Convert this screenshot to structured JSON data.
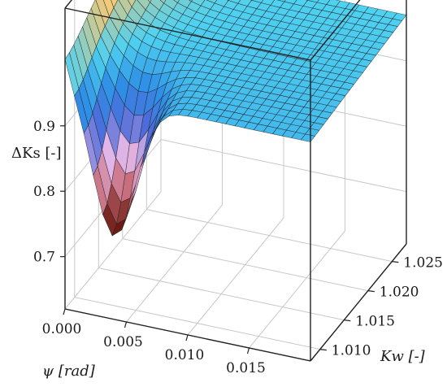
{
  "chart_data": {
    "type": "surface3d",
    "xlabel": "ψ [rad]",
    "ylabel": "Kw [-]",
    "zlabel": "ΔKs [-]",
    "x_ticks": [
      "0.000",
      "0.005",
      "0.010",
      "0.015"
    ],
    "y_ticks": [
      "1.010",
      "1.015",
      "1.020",
      "1.025"
    ],
    "z_ticks": [
      "0.7",
      "0.8",
      "0.9"
    ],
    "x_range": [
      0.0,
      0.02
    ],
    "y_range": [
      1.008,
      1.028
    ],
    "z_range": [
      0.62,
      1.08
    ],
    "grid": true,
    "colormap": [
      "#6b1b12",
      "#c66a78",
      "#e5b8e8",
      "#4d6bd9",
      "#2e8fe6",
      "#4fd1f0"
    ],
    "surface_shape": "Minimum ≈0.76 near ψ≈0.004, Kw≈1.009; maximum ≈1.08 at ψ=0, Kw=1.027; surface flattens near 0.95–0.97 for large ψ"
  }
}
